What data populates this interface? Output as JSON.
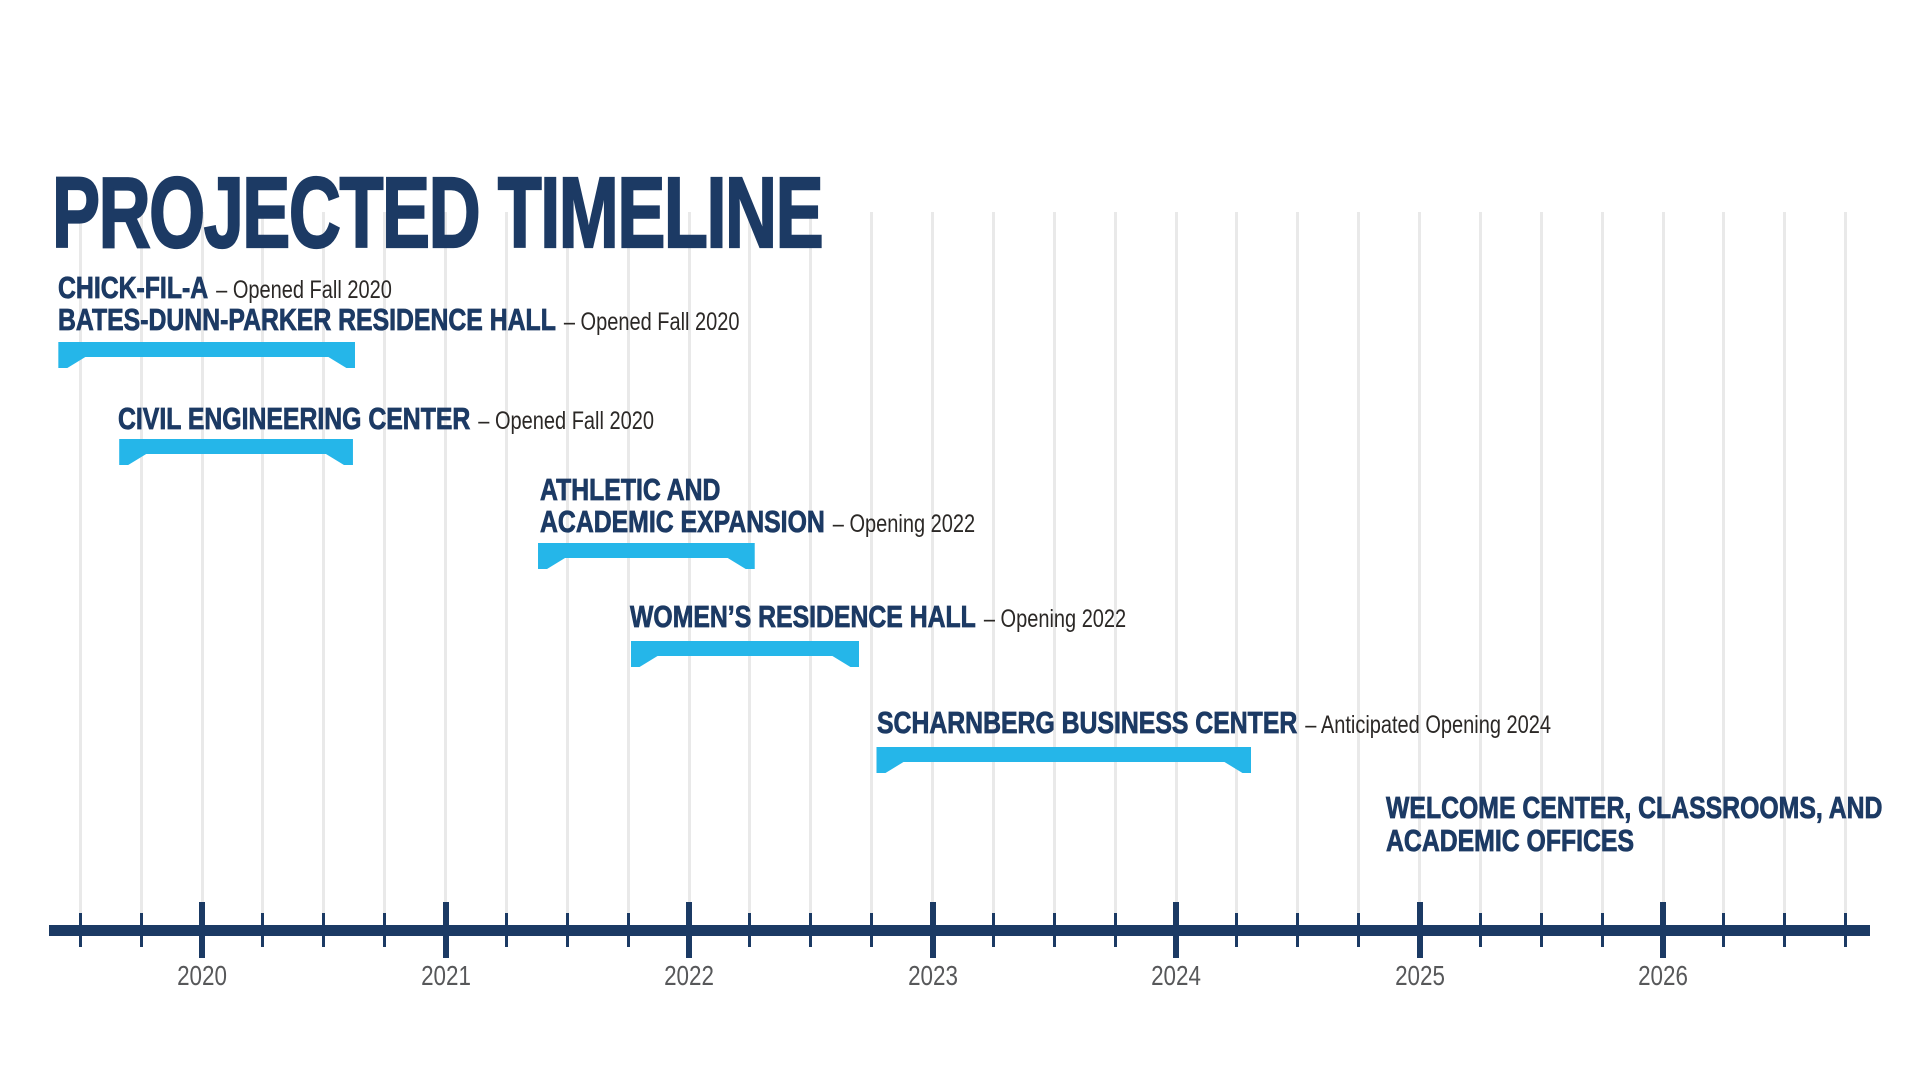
{
  "page": {
    "title": "PROJECTED TIMELINE"
  },
  "colors": {
    "navy": "#1c3a64",
    "cyan_bracket": "#25b6e9",
    "note_text": "#2b2826",
    "year_label_gray": "#57585a",
    "gridline_gray": "#e9e9e9",
    "background": "#ffffff"
  },
  "chart_data": {
    "type": "timeline",
    "title": "PROJECTED TIMELINE",
    "x_axis": {
      "start_year": 2019.4,
      "end_year": 2026.9,
      "tick_interval_years": 0.25,
      "year_labels": [
        "2020",
        "2021",
        "2022",
        "2023",
        "2024",
        "2025",
        "2026"
      ],
      "grid": "on"
    },
    "legend": "none",
    "entries": [
      {
        "labels": [
          {
            "name": "CHICK-FIL-A",
            "note": "– Opened Fall 2020"
          },
          {
            "name": "BATES-DUNN-PARKER RESIDENCE HALL",
            "note": "– Opened Fall 2020"
          }
        ],
        "bar": {
          "start": 2019.41,
          "end": 2020.63
        }
      },
      {
        "labels": [
          {
            "name": "CIVIL ENGINEERING CENTER",
            "note": "– Opened Fall 2020"
          }
        ],
        "bar": {
          "start": 2019.66,
          "end": 2020.62
        }
      },
      {
        "labels": [
          {
            "name": "ATHLETIC AND",
            "note": null
          },
          {
            "name": "ACADEMIC EXPANSION",
            "note": "– Opening 2022"
          }
        ],
        "bar": {
          "start": 2021.38,
          "end": 2022.27
        }
      },
      {
        "labels": [
          {
            "name": "WOMEN’S RESIDENCE HALL",
            "note": "– Opening 2022"
          }
        ],
        "bar": {
          "start": 2021.76,
          "end": 2022.7
        }
      },
      {
        "labels": [
          {
            "name": "SCHARNBERG BUSINESS CENTER",
            "note": "– Anticipated Opening 2024"
          }
        ],
        "bar": {
          "start": 2022.77,
          "end": 2024.31
        }
      },
      {
        "labels": [
          {
            "name": "WELCOME CENTER, CLASSROOMS, AND",
            "note": null
          },
          {
            "name": "ACADEMIC OFFICES",
            "note": null
          }
        ],
        "bar": null
      }
    ]
  }
}
